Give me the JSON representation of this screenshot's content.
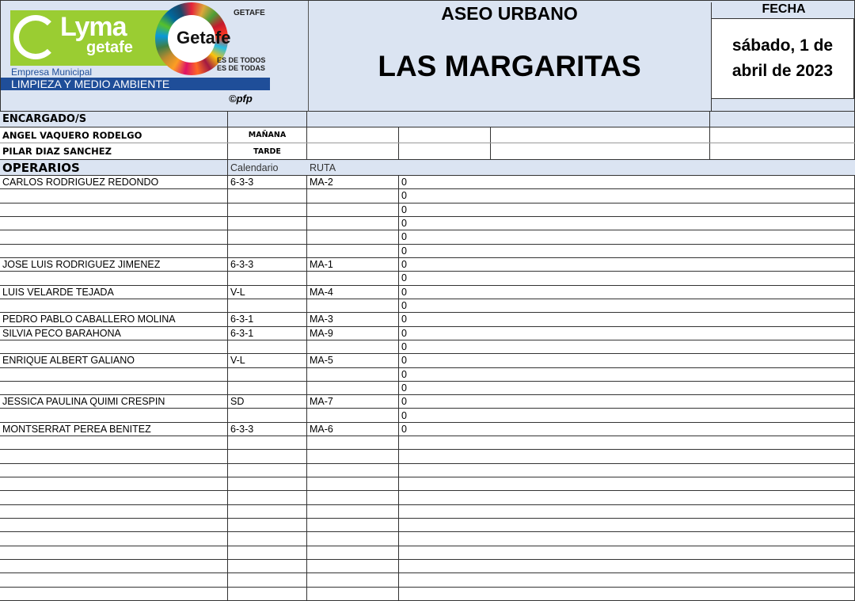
{
  "header": {
    "logo_text": "Lyma getafe",
    "logo_sub": "getafe",
    "sdg_logo": "Getafe",
    "ayuntamiento": "GETAFE",
    "slogan": "ES DE TODOS ES DE TODAS",
    "empresa": "Empresa Municipal",
    "band": "LIMPIEZA Y MEDIO AMBIENTE",
    "copyright": "©pfp",
    "title": "ASEO URBANO",
    "subtitle": "LAS MARGARITAS",
    "fecha_label": "FECHA",
    "fecha": "sábado, 1 de abril de 2023"
  },
  "encargados": {
    "label": "ENCARGADO/S",
    "rows": [
      {
        "name": "ANGEL VAQUERO RODELGO",
        "turno": "MAÑANA"
      },
      {
        "name": "PILAR DIAZ SANCHEZ",
        "turno": "TARDE"
      }
    ]
  },
  "operarios": {
    "label": "OPERARIOS",
    "col_calendario": "Calendario",
    "col_ruta": "RUTA",
    "rows": [
      {
        "name": "CARLOS RODRIGUEZ REDONDO",
        "cal": "6-3-3",
        "ruta": "MA-2",
        "val": "0"
      },
      {
        "name": "",
        "cal": "",
        "ruta": "",
        "val": "0"
      },
      {
        "name": "",
        "cal": "",
        "ruta": "",
        "val": "0"
      },
      {
        "name": "",
        "cal": "",
        "ruta": "",
        "val": "0"
      },
      {
        "name": "",
        "cal": "",
        "ruta": "",
        "val": "0"
      },
      {
        "name": "",
        "cal": "",
        "ruta": "",
        "val": "0"
      },
      {
        "name": "JOSE LUIS RODRIGUEZ JIMENEZ",
        "cal": "6-3-3",
        "ruta": "MA-1",
        "val": "0"
      },
      {
        "name": "",
        "cal": "",
        "ruta": "",
        "val": "0"
      },
      {
        "name": "LUIS VELARDE TEJADA",
        "cal": "V-L",
        "ruta": "MA-4",
        "val": "0"
      },
      {
        "name": "",
        "cal": "",
        "ruta": "",
        "val": "0"
      },
      {
        "name": "PEDRO PABLO CABALLERO MOLINA",
        "cal": "6-3-1",
        "ruta": "MA-3",
        "val": "0"
      },
      {
        "name": "SILVIA PECO BARAHONA",
        "cal": "6-3-1",
        "ruta": "MA-9",
        "val": "0"
      },
      {
        "name": "",
        "cal": "",
        "ruta": "",
        "val": "0"
      },
      {
        "name": "ENRIQUE ALBERT GALIANO",
        "cal": "V-L",
        "ruta": "MA-5",
        "val": "0"
      },
      {
        "name": "",
        "cal": "",
        "ruta": "",
        "val": "0"
      },
      {
        "name": "",
        "cal": "",
        "ruta": "",
        "val": "0"
      },
      {
        "name": "JESSICA PAULINA QUIMI CRESPIN",
        "cal": "SD",
        "ruta": "MA-7",
        "val": "0"
      },
      {
        "name": "",
        "cal": "",
        "ruta": "",
        "val": "0"
      },
      {
        "name": "MONTSERRAT PEREA BENITEZ",
        "cal": "6-3-3",
        "ruta": "MA-6",
        "val": "0"
      }
    ]
  }
}
